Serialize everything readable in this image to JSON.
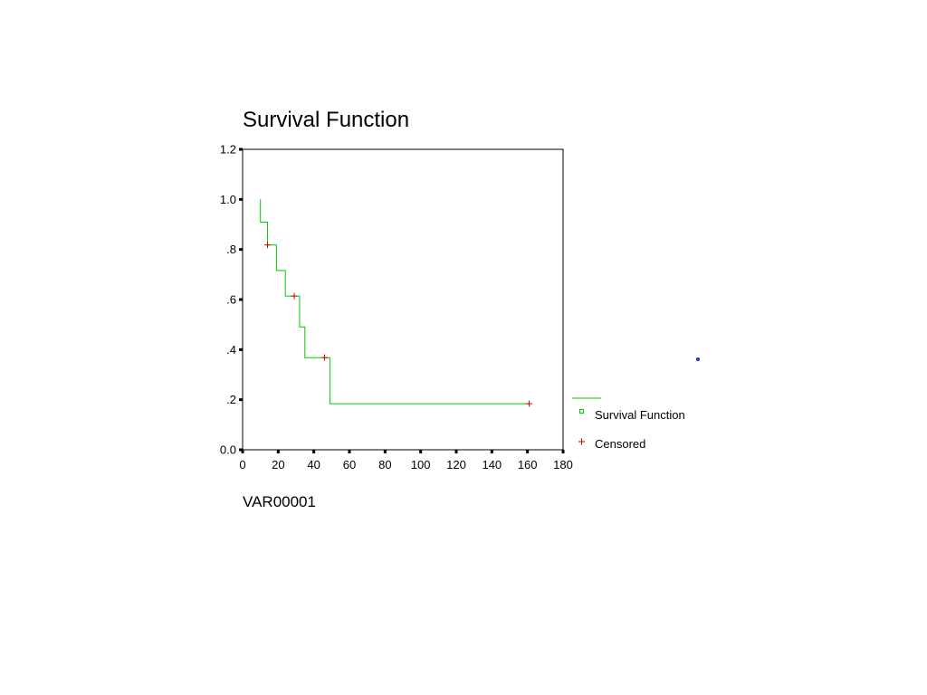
{
  "chart_data": {
    "type": "line",
    "title": "Survival Function",
    "xlabel": "VAR00001",
    "ylabel": "",
    "xlim": [
      0,
      180
    ],
    "ylim": [
      0,
      1.2
    ],
    "xticks": [
      0,
      20,
      40,
      60,
      80,
      100,
      120,
      140,
      160,
      180
    ],
    "xtick_labels": [
      "0",
      "20",
      "40",
      "60",
      "80",
      "100",
      "120",
      "140",
      "160",
      "180"
    ],
    "yticks": [
      0,
      0.2,
      0.4,
      0.6,
      0.8,
      1.0,
      1.2
    ],
    "ytick_labels": [
      "0.0",
      ".2",
      ".4",
      ".6",
      ".8",
      "1.0",
      "1.2"
    ],
    "grid": false,
    "legend_position": "right",
    "series": [
      {
        "name": "Survival Function",
        "style": "step",
        "color": "#00cc00",
        "points": [
          [
            10,
            1.0
          ],
          [
            10,
            0.909
          ],
          [
            14,
            0.909
          ],
          [
            14,
            0.818
          ],
          [
            19,
            0.818
          ],
          [
            19,
            0.716
          ],
          [
            24,
            0.716
          ],
          [
            24,
            0.614
          ],
          [
            32,
            0.614
          ],
          [
            32,
            0.491
          ],
          [
            35,
            0.491
          ],
          [
            35,
            0.368
          ],
          [
            49,
            0.368
          ],
          [
            49,
            0.184
          ],
          [
            161,
            0.184
          ]
        ]
      },
      {
        "name": "Censored",
        "style": "marker",
        "color": "#cc0000",
        "points": [
          [
            14,
            0.818
          ],
          [
            29,
            0.614
          ],
          [
            46,
            0.368
          ],
          [
            161,
            0.184
          ]
        ]
      }
    ]
  },
  "legend": {
    "items": [
      {
        "label": "Survival Function",
        "color": "#00cc00",
        "marker": "square-outline"
      },
      {
        "label": "Censored",
        "color": "#cc0000",
        "marker": "plus"
      }
    ]
  }
}
